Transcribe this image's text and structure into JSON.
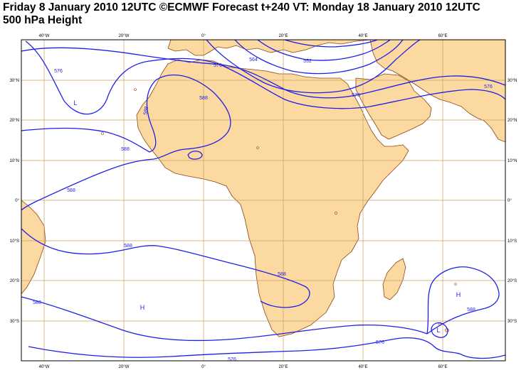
{
  "title": {
    "line1": "Friday 8 January 2010 12UTC ©ECMWF Forecast t+240 VT: Monday 18 January 2010 12UTC",
    "line2": "500 hPa Height"
  },
  "axes": {
    "lon_labels": [
      "40°W",
      "20°W",
      "0°",
      "20°E",
      "40°E",
      "60°E"
    ],
    "lat_labels": [
      "30°N",
      "20°N",
      "10°N",
      "0°",
      "10°S",
      "20°S",
      "30°S"
    ]
  },
  "contour_labels": [
    "576",
    "576",
    "564",
    "552",
    "576",
    "576",
    "588",
    "588",
    "588",
    "588",
    "588",
    "588",
    "588",
    "588",
    "576",
    "576"
  ],
  "pressure_centers": [
    {
      "symbol": "L",
      "description": "low-centre-north-atlantic"
    },
    {
      "symbol": "H",
      "description": "high-centre-south-atlantic"
    },
    {
      "symbol": "H",
      "description": "high-centre-indian-ocean"
    },
    {
      "symbol": "L",
      "description": "low-centre-indian-ocean"
    }
  ],
  "colors": {
    "land": "#fcd9a0",
    "coast": "#8b4513",
    "contour": "#1f1fe8",
    "grid": "#c8a060",
    "frame": "#000000"
  }
}
